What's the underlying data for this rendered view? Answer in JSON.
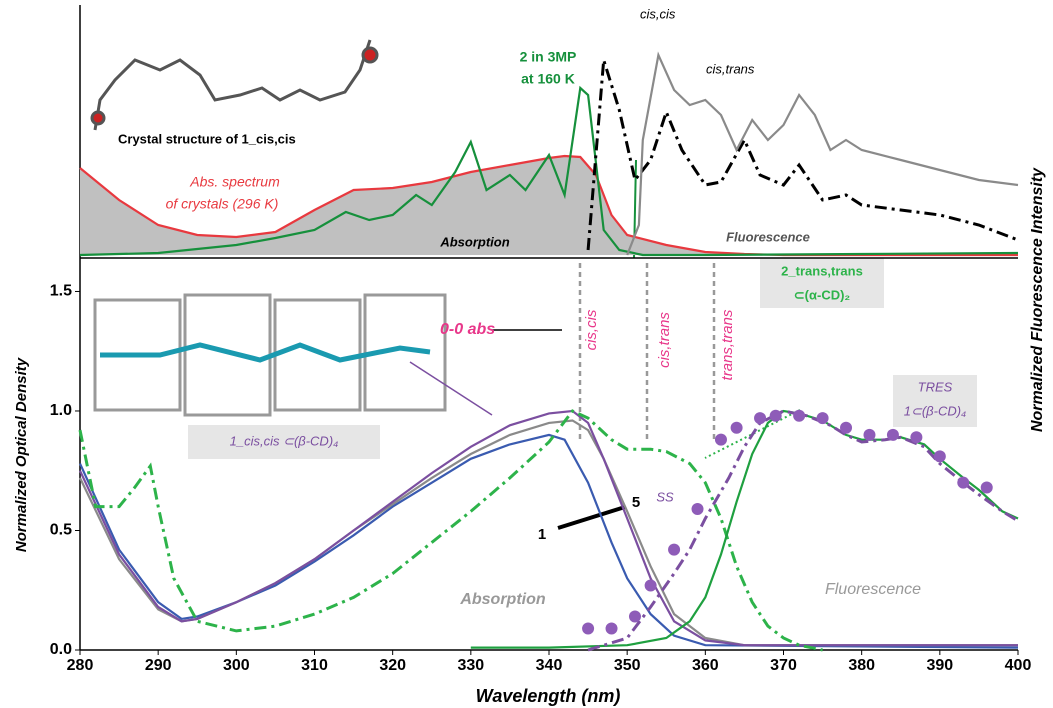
{
  "chart_data": [
    {
      "type": "line",
      "xlim": [
        280,
        400
      ],
      "ylim": [
        0,
        1.2
      ],
      "annotations": [
        "Crystal structure of 1_cis,cis",
        "Abs. spectrum",
        "of crystals (296 K)",
        "2 in 3MP",
        "at 160  K",
        "cis,cis",
        "cis,trans",
        "Absorption",
        "Fluorescence"
      ],
      "series": [
        {
          "color": "#e8393f",
          "fill": "#c0c0c0",
          "style": "solid",
          "x": [
            280,
            285,
            290,
            295,
            300,
            305,
            310,
            315,
            320,
            325,
            330,
            335,
            340,
            342,
            344,
            346,
            348,
            350,
            355,
            360,
            365,
            370,
            400
          ],
          "values": [
            0.435,
            0.275,
            0.15,
            0.1,
            0.09,
            0.115,
            0.225,
            0.325,
            0.335,
            0.365,
            0.415,
            0.45,
            0.485,
            0.495,
            0.49,
            0.4,
            0.2,
            0.1,
            0.05,
            0.015,
            0.005,
            0,
            0
          ]
        },
        {
          "color": "#16903c",
          "style": "solid",
          "x": [
            280,
            290,
            300,
            305,
            310,
            314,
            317,
            320,
            323,
            325,
            328,
            330,
            332,
            335,
            337,
            340,
            342,
            344,
            345,
            347,
            349,
            352,
            360,
            380,
            400
          ],
          "values": [
            0,
            0.01,
            0.05,
            0.085,
            0.125,
            0.215,
            0.175,
            0.2,
            0.3,
            0.25,
            0.415,
            0.565,
            0.325,
            0.4,
            0.325,
            0.5,
            0.3,
            0.835,
            0.8,
            0.125,
            0.025,
            0,
            0,
            0.005,
            0.01
          ]
        },
        {
          "color": "#000000",
          "style": "dashdot",
          "x": [
            345,
            347,
            349,
            351,
            353,
            355,
            357,
            360,
            362,
            365,
            367,
            370,
            372,
            375,
            378,
            380,
            385,
            390,
            395,
            400
          ],
          "values": [
            0.025,
            0.975,
            0.725,
            0.375,
            0.475,
            0.715,
            0.525,
            0.35,
            0.365,
            0.575,
            0.4,
            0.35,
            0.45,
            0.275,
            0.3,
            0.25,
            0.225,
            0.2,
            0.15,
            0.075
          ]
        },
        {
          "color": "#8a8a8a",
          "style": "solid",
          "x": [
            350,
            351.5,
            352,
            354,
            356,
            358,
            360,
            362,
            364,
            366,
            368,
            370,
            372,
            374,
            376,
            378,
            380,
            385,
            390,
            395,
            400
          ],
          "values": [
            0,
            0.15,
            0.575,
            1.0,
            0.825,
            0.75,
            0.775,
            0.7,
            0.525,
            0.675,
            0.575,
            0.65,
            0.8,
            0.7,
            0.525,
            0.575,
            0.525,
            0.475,
            0.425,
            0.375,
            0.35
          ]
        }
      ]
    },
    {
      "type": "line",
      "xlim": [
        280,
        400
      ],
      "ylim": [
        0,
        1.64
      ],
      "xticks": [
        280,
        290,
        300,
        310,
        320,
        330,
        340,
        350,
        360,
        370,
        380,
        390,
        400
      ],
      "yticks": [
        {
          "value": 0,
          "label": "0.0"
        },
        {
          "value": 0.5,
          "label": "0.5"
        },
        {
          "value": 1,
          "label": "1.0"
        },
        {
          "value": 1.5,
          "label": "1.5"
        }
      ],
      "x_label": "Wavelength (nm)",
      "y_label": "Normalized Optical Density",
      "y2_label": "Normalized  Fluorescence Intensity",
      "annotations": [
        "0-0 abs",
        "cis,cis",
        "cis,trans",
        "trans,trans",
        "2_trans,trans",
        "⊂(α-CD)₂",
        "1_cis,cis ⊂(β-CD)₄",
        "TRES",
        "1⊂(β-CD)₄",
        "1",
        "5",
        "SS",
        "Absorption",
        "Fluorescence"
      ],
      "series": [
        {
          "color": "#3a5bb0",
          "style": "solid",
          "x": [
            280,
            285,
            290,
            293,
            295,
            300,
            305,
            310,
            315,
            320,
            325,
            330,
            335,
            340,
            342,
            345,
            348,
            350,
            353,
            356,
            360,
            400
          ],
          "values": [
            0.78,
            0.42,
            0.2,
            0.13,
            0.14,
            0.2,
            0.27,
            0.37,
            0.48,
            0.6,
            0.7,
            0.8,
            0.86,
            0.9,
            0.88,
            0.7,
            0.45,
            0.3,
            0.15,
            0.06,
            0.02,
            0.01
          ]
        },
        {
          "color": "#8a8a8a",
          "style": "solid",
          "x": [
            280,
            285,
            290,
            293,
            295,
            300,
            305,
            310,
            315,
            320,
            325,
            330,
            335,
            340,
            343,
            345,
            347,
            350,
            353,
            356,
            360,
            365,
            400
          ],
          "values": [
            0.72,
            0.38,
            0.17,
            0.12,
            0.13,
            0.2,
            0.28,
            0.38,
            0.5,
            0.61,
            0.72,
            0.82,
            0.9,
            0.95,
            0.96,
            0.92,
            0.8,
            0.58,
            0.35,
            0.15,
            0.05,
            0.02,
            0.02
          ]
        },
        {
          "color": "#7b4fa0",
          "style": "solid",
          "x": [
            280,
            285,
            290,
            293,
            295,
            300,
            305,
            310,
            315,
            320,
            325,
            330,
            335,
            340,
            343,
            345,
            347,
            350,
            353,
            356,
            360,
            365,
            400
          ],
          "values": [
            0.75,
            0.4,
            0.18,
            0.12,
            0.13,
            0.2,
            0.28,
            0.38,
            0.5,
            0.62,
            0.74,
            0.85,
            0.94,
            0.99,
            1.0,
            0.95,
            0.8,
            0.55,
            0.3,
            0.12,
            0.04,
            0.02,
            0.02
          ]
        },
        {
          "color": "#2db34a",
          "style": "dashdot",
          "x": [
            280,
            282,
            285,
            287,
            289,
            290,
            292,
            295,
            300,
            305,
            310,
            315,
            320,
            325,
            330,
            335,
            340,
            343,
            345,
            348,
            350,
            353,
            355,
            358,
            360,
            362,
            364,
            366,
            368,
            370,
            372,
            375
          ],
          "values": [
            0.92,
            0.6,
            0.6,
            0.68,
            0.77,
            0.6,
            0.3,
            0.12,
            0.08,
            0.1,
            0.15,
            0.22,
            0.32,
            0.45,
            0.58,
            0.72,
            0.87,
            1.0,
            0.97,
            0.88,
            0.84,
            0.84,
            0.83,
            0.78,
            0.7,
            0.55,
            0.35,
            0.2,
            0.1,
            0.05,
            0.02,
            0
          ]
        },
        {
          "color": "#1fa040",
          "style": "solid",
          "x": [
            330,
            340,
            350,
            355,
            358,
            360,
            362,
            364,
            366,
            368,
            370,
            372,
            375,
            378,
            380,
            383,
            385,
            388,
            390,
            393,
            395,
            398,
            400
          ],
          "values": [
            0.01,
            0.01,
            0.02,
            0.05,
            0.12,
            0.22,
            0.4,
            0.62,
            0.82,
            0.95,
            1.0,
            0.99,
            0.96,
            0.9,
            0.88,
            0.88,
            0.89,
            0.86,
            0.8,
            0.72,
            0.67,
            0.58,
            0.55
          ]
        },
        {
          "color": "#7b4fa0",
          "style": "dashdot",
          "x": [
            345,
            350,
            353,
            356,
            358,
            360,
            363,
            365,
            367,
            370,
            373,
            376,
            378,
            380,
            383,
            385,
            388,
            390,
            393,
            395,
            398,
            400
          ],
          "values": [
            0,
            0.05,
            0.18,
            0.32,
            0.42,
            0.55,
            0.72,
            0.85,
            0.95,
            1.0,
            0.98,
            0.94,
            0.9,
            0.87,
            0.88,
            0.89,
            0.85,
            0.78,
            0.7,
            0.65,
            0.58,
            0.54
          ]
        },
        {
          "color": "#8e5cb8",
          "style": "dots",
          "x": [
            345,
            348,
            351,
            353,
            356,
            359,
            362,
            364,
            367,
            369,
            372,
            375,
            378,
            381,
            384,
            387,
            390,
            393,
            396
          ],
          "values": [
            0.09,
            0.09,
            0.14,
            0.27,
            0.42,
            0.59,
            0.88,
            0.93,
            0.97,
            0.98,
            0.98,
            0.97,
            0.93,
            0.9,
            0.9,
            0.89,
            0.81,
            0.7,
            0.68
          ]
        }
      ]
    }
  ]
}
